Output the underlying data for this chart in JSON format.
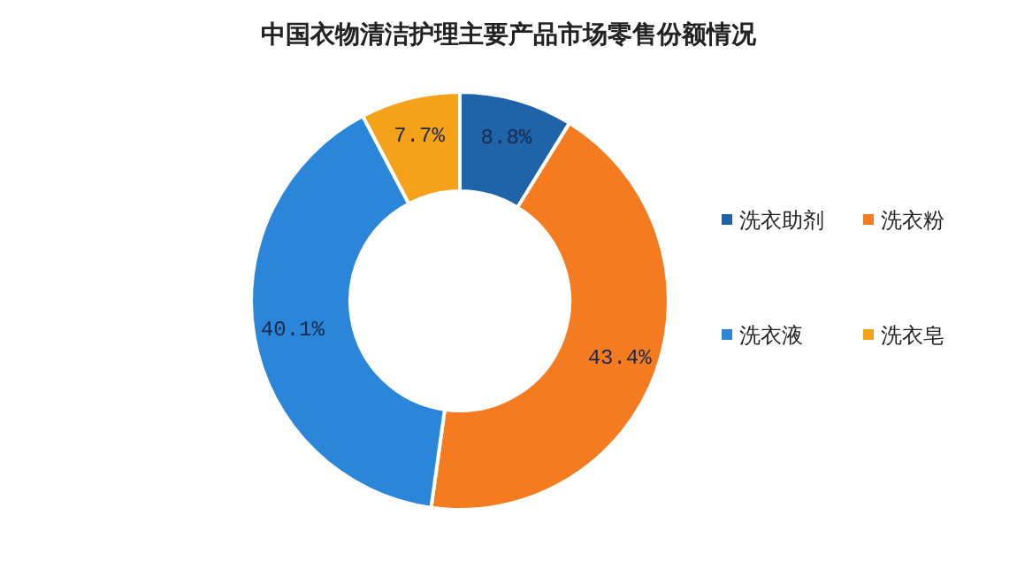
{
  "chart_data": {
    "type": "donut",
    "title": "中国衣物清洁护理主要产品市场零售份额情况",
    "categories": [
      "洗衣助剂",
      "洗衣粉",
      "洗衣液",
      "洗衣皂"
    ],
    "values": [
      8.8,
      43.4,
      40.1,
      7.7
    ],
    "colors": [
      "#1f63a8",
      "#f47b20",
      "#2b85d8",
      "#f5a21b"
    ],
    "value_labels": [
      "8.8%",
      "43.4%",
      "40.1%",
      "7.7%"
    ],
    "legend": "right"
  }
}
